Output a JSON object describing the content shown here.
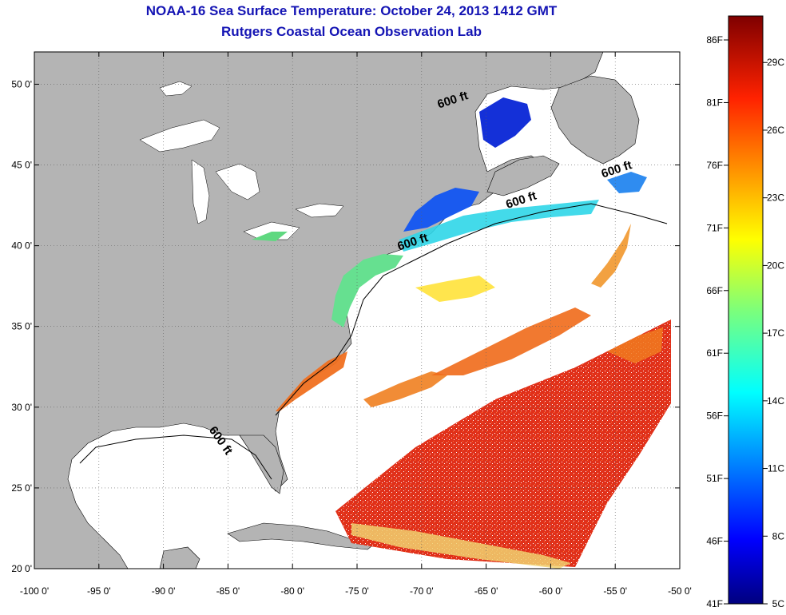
{
  "title": "NOAA-16 Sea Surface Temperature:  October 24, 2013 1412 GMT",
  "subtitle": "Rutgers Coastal Ocean Observation Lab",
  "map": {
    "lon_range": [
      -100,
      -50
    ],
    "lat_range": [
      20,
      52
    ],
    "lon_ticks": [
      "-100 0'",
      "-95 0'",
      "-90 0'",
      "-85 0'",
      "-80 0'",
      "-75 0'",
      "-70 0'",
      "-65 0'",
      "-60 0'",
      "-55 0'",
      "-50 0'"
    ],
    "lat_ticks": [
      "50 0'",
      "45 0'",
      "40 0'",
      "35 0'",
      "30 0'",
      "25 0'",
      "20 0'"
    ],
    "grid": "dotted",
    "land_color": "#b4b4b4",
    "contour_labels": [
      {
        "text": "600 ft",
        "lon": -67.5,
        "lat": 48.8
      },
      {
        "text": "600 ft",
        "lon": -54.8,
        "lat": 44.5
      },
      {
        "text": "600 ft",
        "lon": -62.2,
        "lat": 42.6
      },
      {
        "text": "600 ft",
        "lon": -70.6,
        "lat": 40.0
      },
      {
        "text": "600 ft",
        "lon": -85.8,
        "lat": 27.8
      }
    ]
  },
  "colorbar": {
    "fahrenheit_labels": [
      "86F",
      "81F",
      "76F",
      "71F",
      "66F",
      "61F",
      "56F",
      "51F",
      "46F",
      "41F"
    ],
    "celsius_labels": [
      "29C",
      "26C",
      "23C",
      "20C",
      "17C",
      "14C",
      "11C",
      "8C",
      "5C"
    ]
  }
}
